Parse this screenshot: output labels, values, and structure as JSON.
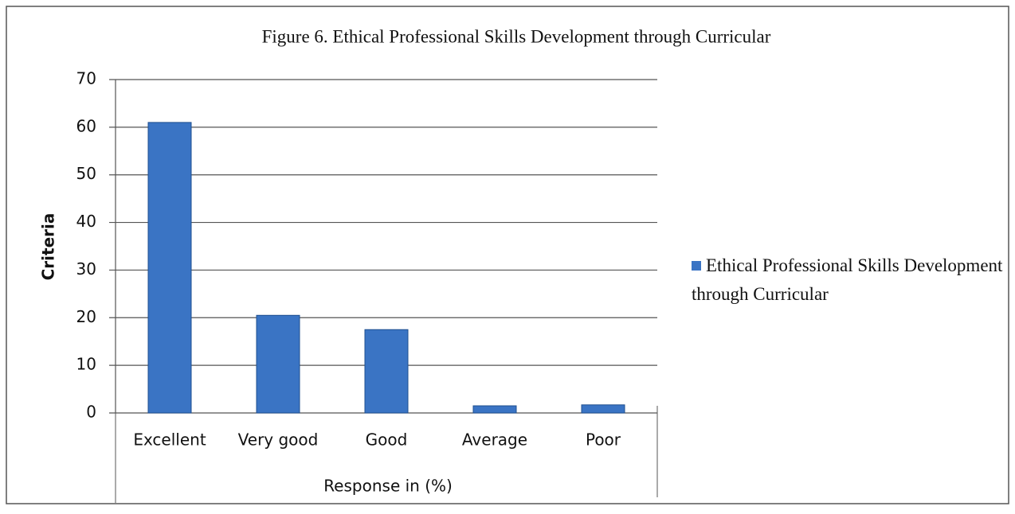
{
  "chart_data": {
    "type": "bar",
    "title": "Figure 6. Ethical Professional Skills Development through Curricular",
    "x_label": "Response in (%)",
    "y_label": "Criteria",
    "categories": [
      "Excellent",
      "Very good",
      "Good",
      "Average",
      "Poor"
    ],
    "series": [
      {
        "name": "Ethical Professional Skills Development through Curricular",
        "color": "#3a74c4",
        "values": [
          61,
          20.5,
          17.5,
          1.5,
          1.7
        ]
      }
    ],
    "ylim": [
      0,
      70
    ],
    "yticks": [
      0,
      10,
      20,
      30,
      40,
      50,
      60,
      70
    ],
    "grid": true,
    "legend": "right"
  }
}
